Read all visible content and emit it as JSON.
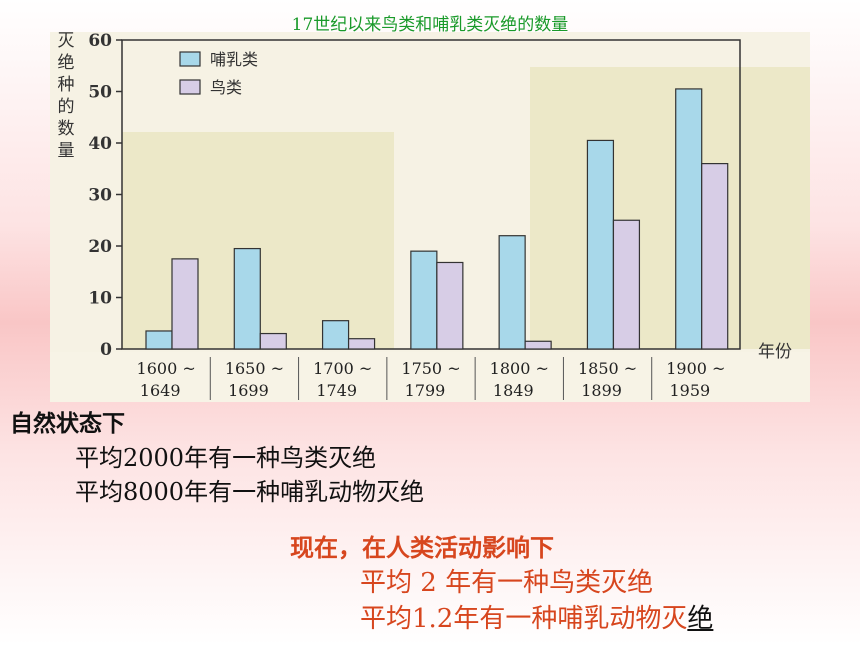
{
  "title": "17世纪以来鸟类和哺乳类灭绝的数量",
  "chart_data": {
    "type": "bar",
    "categories": [
      [
        "1600 ~",
        "1649"
      ],
      [
        "1650 ~",
        "1699"
      ],
      [
        "1700 ~",
        "1749"
      ],
      [
        "1750 ~",
        "1799"
      ],
      [
        "1800 ~",
        "1849"
      ],
      [
        "1850 ~",
        "1899"
      ],
      [
        "1900 ~",
        "1959"
      ]
    ],
    "series": [
      {
        "name": "哺乳类",
        "values": [
          3.5,
          19.5,
          5.5,
          19,
          22,
          40.5,
          50.5
        ],
        "color": "#a8d8ea"
      },
      {
        "name": "鸟类",
        "values": [
          17.5,
          3,
          2,
          16.8,
          1.5,
          25,
          36
        ],
        "color": "#d7cde6"
      }
    ],
    "ylabel": "灭绝种的数量",
    "xlabel": "年份",
    "yticks": [
      0,
      10,
      20,
      30,
      40,
      50,
      60
    ],
    "ylim": [
      0,
      60
    ],
    "legend_position": "top-left",
    "grid": false
  },
  "natural": {
    "heading": "自然状态下",
    "line1": "平均2000年有一种鸟类灭绝",
    "line2": "平均8000年有一种哺乳动物灭绝"
  },
  "human": {
    "heading": "现在，在人类活动影响下",
    "line1": "平均 2 年有一种鸟类灭绝",
    "line2_main": "平均1.2年有一种哺乳动物灭",
    "line2_tail": "绝"
  }
}
